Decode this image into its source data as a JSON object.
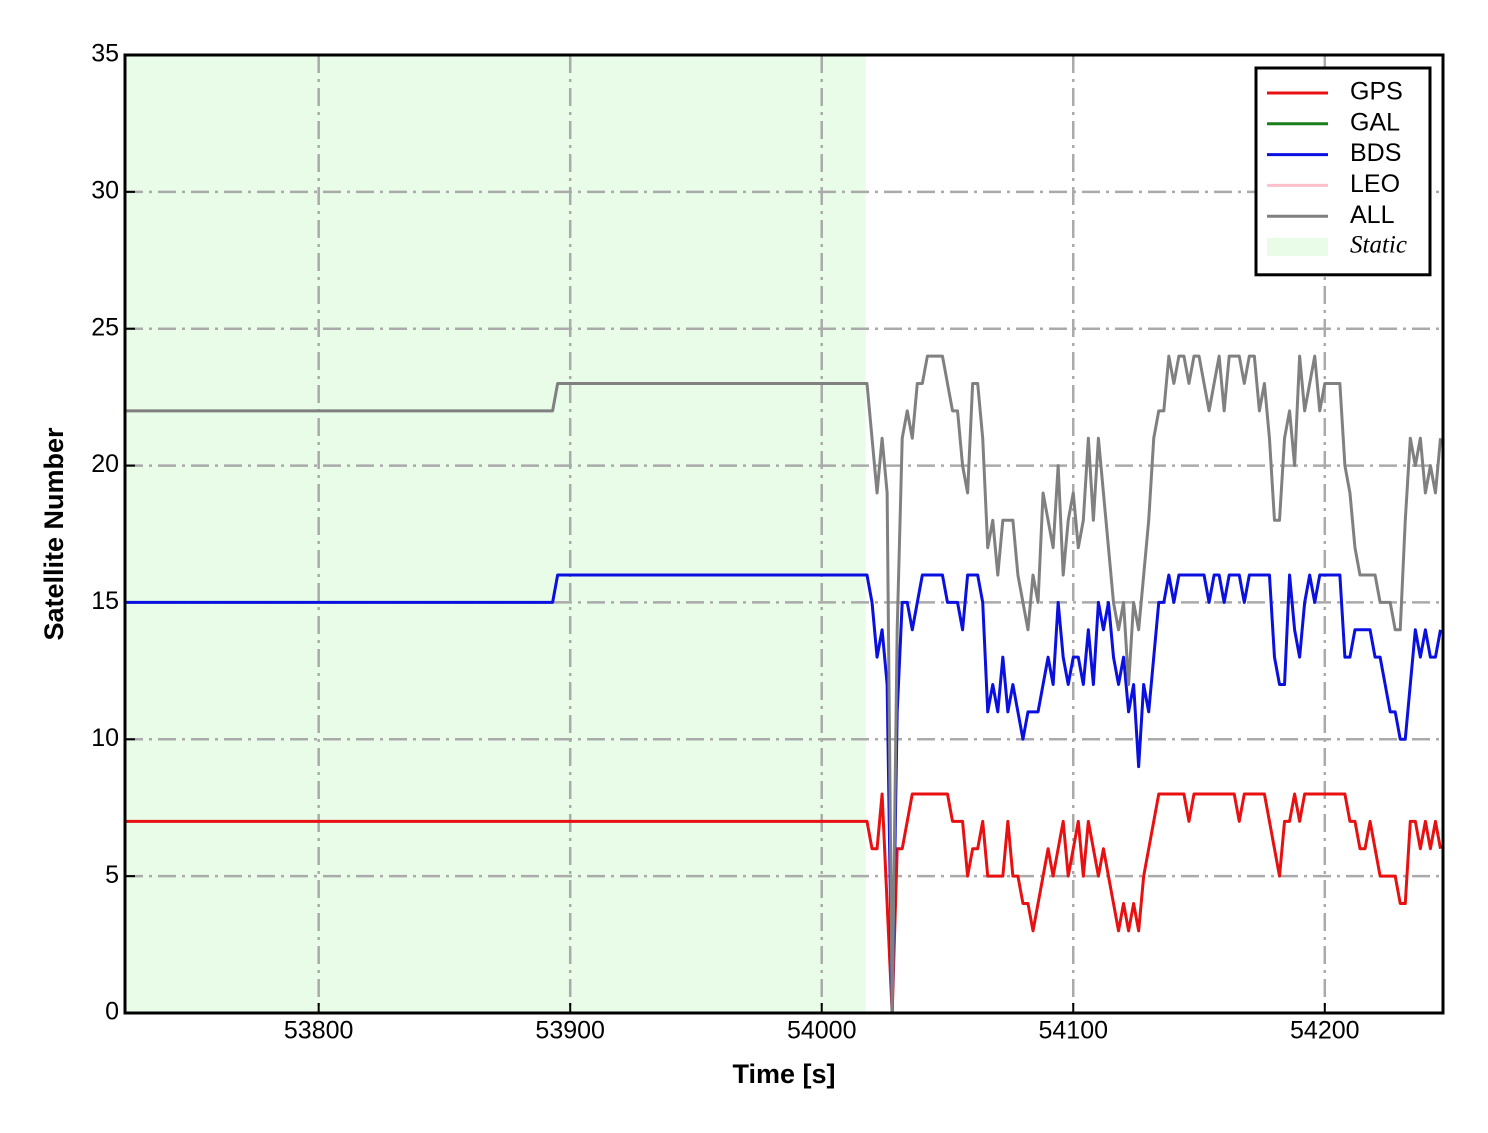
{
  "chart_data": {
    "type": "line",
    "xlabel": "Time [s]",
    "ylabel": "Satellite Number",
    "xlim": [
      53723,
      54247
    ],
    "ylim": [
      0,
      35
    ],
    "xticks": [
      53800,
      53900,
      54000,
      54100,
      54200
    ],
    "yticks": [
      0,
      5,
      10,
      15,
      20,
      25,
      30,
      35
    ],
    "grid": true,
    "legend": "upper right",
    "shaded_region": {
      "label": "Static",
      "x": [
        53723,
        54017.5
      ],
      "color": "#e8fce8"
    },
    "x": [
      53723,
      53893,
      53895,
      54018,
      54020,
      54022,
      54024,
      54026,
      54028,
      54030,
      54032,
      54034,
      54036,
      54038,
      54040,
      54042,
      54044,
      54046,
      54048,
      54050,
      54052,
      54054,
      54056,
      54058,
      54060,
      54062,
      54064,
      54066,
      54068,
      54070,
      54072,
      54074,
      54076,
      54078,
      54080,
      54082,
      54084,
      54086,
      54088,
      54090,
      54092,
      54094,
      54096,
      54098,
      54100,
      54102,
      54104,
      54106,
      54108,
      54110,
      54112,
      54114,
      54116,
      54118,
      54120,
      54122,
      54124,
      54126,
      54128,
      54130,
      54132,
      54134,
      54136,
      54138,
      54140,
      54142,
      54144,
      54146,
      54148,
      54150,
      54152,
      54154,
      54156,
      54158,
      54160,
      54162,
      54164,
      54166,
      54168,
      54170,
      54172,
      54174,
      54176,
      54178,
      54180,
      54182,
      54184,
      54186,
      54188,
      54190,
      54192,
      54194,
      54196,
      54198,
      54200,
      54202,
      54204,
      54206,
      54208,
      54210,
      54212,
      54214,
      54216,
      54218,
      54220,
      54222,
      54224,
      54226,
      54228,
      54230,
      54232,
      54234,
      54236,
      54238,
      54240,
      54242,
      54244,
      54246
    ],
    "series": [
      {
        "name": "GPS",
        "color": "#e81010",
        "values": [
          7,
          7,
          7,
          7,
          6,
          6,
          8,
          4,
          0,
          6,
          6,
          7,
          8,
          8,
          8,
          8,
          8,
          8,
          8,
          8,
          7,
          7,
          7,
          5,
          6,
          6,
          7,
          5,
          5,
          5,
          5,
          7,
          5,
          5,
          4,
          4,
          3,
          4,
          5,
          6,
          5,
          6,
          7,
          5,
          6,
          7,
          5,
          7,
          6,
          5,
          6,
          5,
          4,
          3,
          4,
          3,
          4,
          3,
          5,
          6,
          7,
          8,
          8,
          8,
          8,
          8,
          8,
          7,
          8,
          8,
          8,
          8,
          8,
          8,
          8,
          8,
          8,
          7,
          8,
          8,
          8,
          8,
          8,
          7,
          6,
          5,
          7,
          7,
          8,
          7,
          8,
          8,
          8,
          8,
          8,
          8,
          8,
          8,
          8,
          7,
          7,
          6,
          6,
          7,
          6,
          5,
          5,
          5,
          5,
          4,
          4,
          7,
          7,
          6,
          7,
          6,
          7,
          6
        ]
      },
      {
        "name": "GAL",
        "color": "#1a7f1a",
        "values": [
          null,
          null,
          null,
          null,
          null,
          null,
          null,
          null,
          null,
          null,
          null,
          null,
          null,
          null,
          null,
          null,
          null,
          null,
          null,
          null,
          null,
          null,
          null,
          null,
          null,
          null,
          null,
          null,
          null,
          null,
          null,
          null,
          null,
          null,
          null,
          null,
          null,
          null,
          null,
          null,
          null,
          null,
          null,
          null,
          null,
          null,
          null,
          null,
          null,
          null,
          null,
          null,
          null,
          null,
          null,
          null,
          null,
          null,
          null,
          null,
          null,
          null,
          null,
          null,
          null,
          null,
          null,
          null,
          null,
          null,
          null,
          null,
          null,
          null,
          null,
          null,
          null,
          null,
          null,
          null,
          null,
          null,
          null,
          null,
          null,
          null,
          null,
          null,
          null,
          null,
          null,
          null,
          null,
          null,
          null,
          null,
          null,
          null,
          null,
          null,
          null,
          null,
          null,
          null,
          null,
          null,
          null,
          null,
          null,
          null,
          null,
          null,
          null,
          null,
          null,
          null,
          null,
          null
        ]
      },
      {
        "name": "BDS",
        "color": "#0a10e0",
        "values": [
          15,
          15,
          16,
          16,
          15,
          13,
          14,
          12,
          0,
          11,
          15,
          15,
          14,
          15,
          16,
          16,
          16,
          16,
          16,
          15,
          15,
          15,
          14,
          16,
          16,
          16,
          15,
          11,
          12,
          11,
          13,
          11,
          12,
          11,
          10,
          11,
          11,
          11,
          12,
          13,
          12,
          15,
          13,
          12,
          13,
          13,
          12,
          14,
          12,
          15,
          14,
          15,
          13,
          12,
          13,
          11,
          12,
          9,
          12,
          11,
          13,
          15,
          15,
          16,
          15,
          16,
          16,
          16,
          16,
          16,
          16,
          15,
          16,
          16,
          15,
          16,
          16,
          16,
          15,
          16,
          16,
          16,
          16,
          16,
          13,
          12,
          12,
          16,
          14,
          13,
          15,
          16,
          15,
          16,
          16,
          16,
          16,
          16,
          13,
          13,
          14,
          14,
          14,
          14,
          13,
          13,
          12,
          11,
          11,
          10,
          10,
          12,
          14,
          13,
          14,
          13,
          13,
          14
        ]
      },
      {
        "name": "LEO",
        "color": "#ffc0cb",
        "values": [
          null,
          null,
          null,
          null,
          null,
          null,
          null,
          null,
          null,
          null,
          null,
          null,
          null,
          null,
          null,
          null,
          null,
          null,
          null,
          null,
          null,
          null,
          null,
          null,
          null,
          null,
          null,
          null,
          null,
          null,
          null,
          null,
          null,
          null,
          null,
          null,
          null,
          null,
          null,
          null,
          null,
          null,
          null,
          null,
          null,
          null,
          null,
          null,
          null,
          null,
          null,
          null,
          null,
          null,
          null,
          null,
          null,
          null,
          null,
          null,
          null,
          null,
          null,
          null,
          null,
          null,
          null,
          null,
          null,
          null,
          null,
          null,
          null,
          null,
          null,
          null,
          null,
          null,
          null,
          null,
          null,
          null,
          null,
          null,
          null,
          null,
          null,
          null,
          null,
          null,
          null,
          null,
          null,
          null,
          null,
          null,
          null,
          null,
          null,
          null,
          null,
          null,
          null,
          null,
          null,
          null,
          null,
          null,
          null,
          null,
          null,
          null,
          null,
          null,
          null,
          null,
          null,
          null
        ]
      },
      {
        "name": "ALL",
        "color": "#808080",
        "values": [
          22,
          22,
          23,
          23,
          21,
          19,
          21,
          19,
          0,
          14,
          21,
          22,
          21,
          23,
          23,
          24,
          24,
          24,
          24,
          23,
          22,
          22,
          20,
          19,
          23,
          23,
          21,
          17,
          18,
          16,
          18,
          18,
          18,
          16,
          15,
          14,
          16,
          15,
          19,
          18,
          17,
          20,
          16,
          18,
          19,
          17,
          18,
          21,
          18,
          21,
          19,
          17,
          15,
          14,
          15,
          12,
          15,
          14,
          16,
          18,
          21,
          22,
          22,
          24,
          23,
          24,
          24,
          23,
          24,
          24,
          23,
          22,
          23,
          24,
          22,
          24,
          24,
          24,
          23,
          24,
          24,
          22,
          23,
          21,
          18,
          18,
          21,
          22,
          20,
          24,
          22,
          23,
          24,
          22,
          23,
          23,
          23,
          23,
          20,
          19,
          17,
          16,
          16,
          16,
          16,
          15,
          15,
          15,
          14,
          14,
          18,
          21,
          20,
          21,
          19,
          20,
          19,
          21
        ]
      }
    ]
  }
}
